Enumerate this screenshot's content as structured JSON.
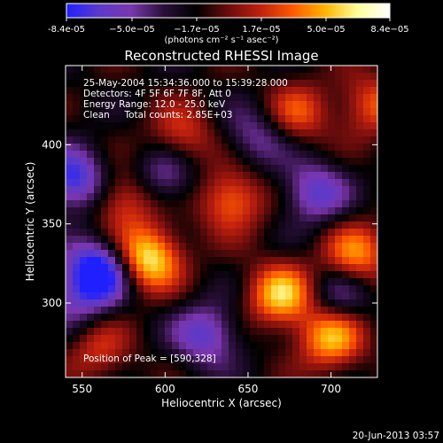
{
  "chart_data": {
    "type": "heatmap",
    "title": "Reconstructed RHESSI Image",
    "xlabel": "Heliocentric X (arcsec)",
    "ylabel": "Heliocentric Y (arcsec)",
    "xlim": [
      540,
      728
    ],
    "ylim": [
      253,
      450
    ],
    "x_ticks": [
      550,
      600,
      650,
      700
    ],
    "y_ticks": [
      300,
      350,
      400
    ],
    "colorbar": {
      "range": [
        -8.4e-05,
        8.4e-05
      ],
      "tick_labels": [
        "-8.4e-05",
        "−5.0e−05",
        "−1.7e−05",
        "1.7e−05",
        "5.0e−05",
        "8.4e−05"
      ],
      "unit": "(photons cm⁻² s⁻¹ asec⁻²)",
      "colors": [
        "#2020ff",
        "#5a3acb",
        "#7a36ad",
        "#2a0f3a",
        "#000000",
        "#6a0c0c",
        "#c0200e",
        "#ff5a00",
        "#ffb400",
        "#ffff9a",
        "#ffffff"
      ]
    },
    "annotations": [
      "25-May-2004 15:34:36.000 to 15:39:28.000",
      "Detectors: 4F 5F 6F 7F 8F, Att 0",
      "Energy Range: 12.0 - 25.0 keV",
      "Clean     Total counts: 2.85E+03"
    ],
    "peak_label": "Position of Peak = [590,328]",
    "peak": [
      590,
      328
    ],
    "sources": [
      {
        "x": 590,
        "y": 328,
        "amp": 8.4e-05
      },
      {
        "x": 670,
        "y": 305,
        "amp": 7.2e-05
      },
      {
        "x": 700,
        "y": 278,
        "amp": 6.8e-05
      },
      {
        "x": 715,
        "y": 330,
        "amp": 5.8e-05
      },
      {
        "x": 640,
        "y": 365,
        "amp": 5.5e-05
      },
      {
        "x": 575,
        "y": 365,
        "amp": 4.5e-05
      },
      {
        "x": 610,
        "y": 405,
        "amp": 4e-05
      },
      {
        "x": 680,
        "y": 420,
        "amp": 4.2e-05
      },
      {
        "x": 560,
        "y": 270,
        "amp": 3.5e-05
      },
      {
        "x": 725,
        "y": 425,
        "amp": 4.5e-05
      },
      {
        "x": 625,
        "y": 280,
        "amp": -5e-05
      },
      {
        "x": 560,
        "y": 320,
        "amp": -8.4e-05
      },
      {
        "x": 545,
        "y": 378,
        "amp": -6.5e-05
      },
      {
        "x": 600,
        "y": 380,
        "amp": -4e-05
      },
      {
        "x": 690,
        "y": 370,
        "amp": -5e-05
      },
      {
        "x": 655,
        "y": 405,
        "amp": -3.5e-05
      },
      {
        "x": 705,
        "y": 305,
        "amp": -3.5e-05
      },
      {
        "x": 545,
        "y": 300,
        "amp": -3e-05
      }
    ]
  },
  "footer": {
    "timestamp": "20-Jun-2013 03:57"
  }
}
